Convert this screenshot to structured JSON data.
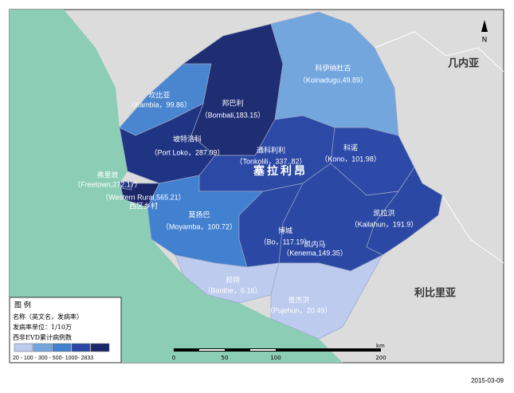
{
  "north": "N",
  "countries": {
    "guinea": "几内亚",
    "liberia": "利比里亚",
    "sierra_leone": "塞拉利昂"
  },
  "districts": [
    {
      "name": "坎比亚",
      "label": "（Kambia，99.86）",
      "color": "#4a86d0"
    },
    {
      "name": "邦巴利",
      "label": "（Bombali,183.15）",
      "color": "#1f2d72"
    },
    {
      "name": "科伊纳杜古",
      "label": "（Koinadugu,49.89）",
      "color": "#74a6de"
    },
    {
      "name": "坡特洛科",
      "label": "（Port Loko，287.09）",
      "color": "#1f3482"
    },
    {
      "name": "通科利利",
      "label": "（Tonkolili，337.,82）",
      "color": "#2c49a6"
    },
    {
      "name": "科诺",
      "label": "（Kono，101.98）",
      "color": "#2d4aa8"
    },
    {
      "name": "弗里敦",
      "label": "（Freetown,272.17）",
      "color": "#1f3482"
    },
    {
      "name": "西区乡村",
      "label": "（Western Rural,565.21）",
      "color": "#1b2768"
    },
    {
      "name": "莫扬巴",
      "label": "（Moyamba，100.72）",
      "color": "#4280d0"
    },
    {
      "name": "博城",
      "label": "（Bo，117.19）",
      "color": "#2b48a4"
    },
    {
      "name": "凯拉洪",
      "label": "（Kailahun，191.9）",
      "color": "#2b48a4"
    },
    {
      "name": "凯内马",
      "label": "（Kenema,149.35）",
      "color": "#2b48a4"
    },
    {
      "name": "邦特",
      "label": "（Bonthe，6.16）",
      "color": "#bccbee"
    },
    {
      "name": "普杰洪",
      "label": "（Pujehun，20.49）",
      "color": "#bccbee"
    }
  ],
  "legend": {
    "title": "图  例",
    "lines": [
      "名称（英文名，发病率）",
      "发病率单位：1/10万",
      "西非EVD累计病例数"
    ],
    "colors": [
      "#bccbee",
      "#74a6de",
      "#4280d0",
      "#2b48a4",
      "#1b2768"
    ],
    "scale": "20 - 100 - 300 - 500- 1000- 2833"
  },
  "scale_bar": {
    "unit": "km",
    "ticks": [
      "0",
      "50",
      "100",
      "200"
    ]
  },
  "date": "2015-03-09"
}
